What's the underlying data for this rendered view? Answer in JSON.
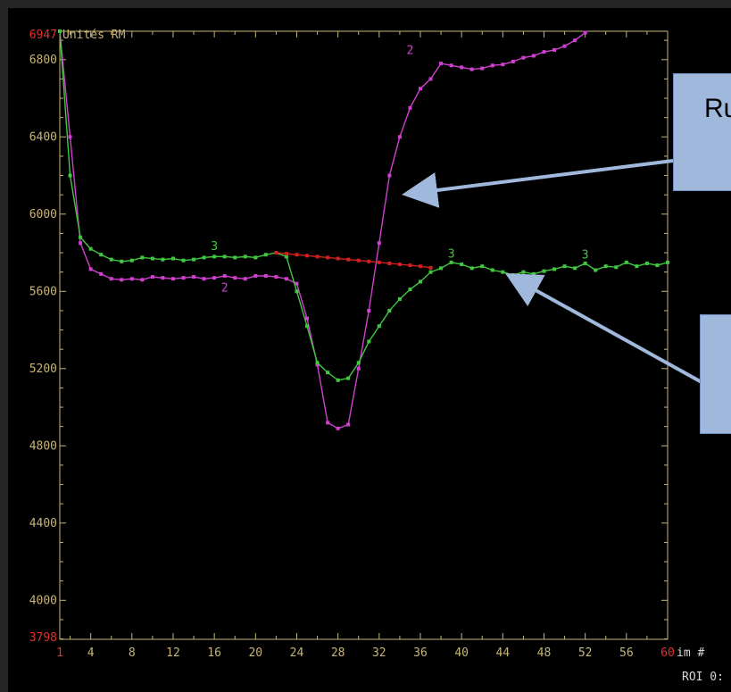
{
  "chart_data": {
    "type": "line",
    "ylabel": "Unités RM",
    "xlabel": "im #",
    "footer_text": "ROI 0:",
    "ylim": [
      3798,
      6947
    ],
    "xlim": [
      1,
      60
    ],
    "y_min_label": "3798",
    "y_max_label": "6947",
    "x_min_label": "1",
    "x_max_label": "60",
    "y_ticks": [
      4000,
      4400,
      4800,
      5200,
      5600,
      6000,
      6400,
      6800
    ],
    "x_ticks": [
      4,
      8,
      12,
      16,
      20,
      24,
      28,
      32,
      36,
      40,
      44,
      48,
      52,
      56
    ],
    "grid": false,
    "series": [
      {
        "name": "2",
        "color": "#d040d0",
        "label_at": [
          [
            17,
            5600
          ],
          [
            35,
            6830
          ]
        ],
        "points": [
          [
            1,
            6947
          ],
          [
            2,
            6400
          ],
          [
            3,
            5850
          ],
          [
            4,
            5715
          ],
          [
            5,
            5690
          ],
          [
            6,
            5665
          ],
          [
            7,
            5660
          ],
          [
            8,
            5665
          ],
          [
            9,
            5660
          ],
          [
            10,
            5675
          ],
          [
            11,
            5670
          ],
          [
            12,
            5665
          ],
          [
            13,
            5670
          ],
          [
            14,
            5675
          ],
          [
            15,
            5665
          ],
          [
            16,
            5670
          ],
          [
            17,
            5680
          ],
          [
            18,
            5670
          ],
          [
            19,
            5665
          ],
          [
            20,
            5680
          ],
          [
            21,
            5680
          ],
          [
            22,
            5675
          ],
          [
            23,
            5665
          ],
          [
            24,
            5640
          ],
          [
            25,
            5460
          ],
          [
            26,
            5220
          ],
          [
            27,
            4920
          ],
          [
            28,
            4890
          ],
          [
            29,
            4910
          ],
          [
            30,
            5200
          ],
          [
            31,
            5500
          ],
          [
            32,
            5850
          ],
          [
            33,
            6200
          ],
          [
            34,
            6400
          ],
          [
            35,
            6550
          ],
          [
            36,
            6650
          ],
          [
            37,
            6700
          ],
          [
            38,
            6780
          ],
          [
            39,
            6770
          ],
          [
            40,
            6760
          ],
          [
            41,
            6750
          ],
          [
            42,
            6755
          ],
          [
            43,
            6770
          ],
          [
            44,
            6775
          ],
          [
            45,
            6790
          ],
          [
            46,
            6810
          ],
          [
            47,
            6820
          ],
          [
            48,
            6840
          ],
          [
            49,
            6850
          ],
          [
            50,
            6870
          ],
          [
            51,
            6900
          ],
          [
            52,
            6940
          ]
        ]
      },
      {
        "name": "3",
        "color": "#40c840",
        "label_at": [
          [
            16,
            5815
          ],
          [
            39,
            5775
          ],
          [
            52,
            5770
          ]
        ],
        "points": [
          [
            1,
            6947
          ],
          [
            2,
            6200
          ],
          [
            3,
            5880
          ],
          [
            4,
            5820
          ],
          [
            5,
            5790
          ],
          [
            6,
            5765
          ],
          [
            7,
            5755
          ],
          [
            8,
            5760
          ],
          [
            9,
            5775
          ],
          [
            10,
            5770
          ],
          [
            11,
            5765
          ],
          [
            12,
            5770
          ],
          [
            13,
            5760
          ],
          [
            14,
            5765
          ],
          [
            15,
            5775
          ],
          [
            16,
            5780
          ],
          [
            17,
            5780
          ],
          [
            18,
            5775
          ],
          [
            19,
            5780
          ],
          [
            20,
            5775
          ],
          [
            21,
            5790
          ],
          [
            22,
            5800
          ],
          [
            23,
            5780
          ],
          [
            24,
            5600
          ],
          [
            25,
            5420
          ],
          [
            26,
            5230
          ],
          [
            27,
            5180
          ],
          [
            28,
            5140
          ],
          [
            29,
            5150
          ],
          [
            30,
            5230
          ],
          [
            31,
            5340
          ],
          [
            32,
            5420
          ],
          [
            33,
            5500
          ],
          [
            34,
            5560
          ],
          [
            35,
            5610
          ],
          [
            36,
            5650
          ],
          [
            37,
            5700
          ],
          [
            38,
            5720
          ],
          [
            39,
            5750
          ],
          [
            40,
            5740
          ],
          [
            41,
            5720
          ],
          [
            42,
            5730
          ],
          [
            43,
            5710
          ],
          [
            44,
            5700
          ],
          [
            45,
            5685
          ],
          [
            46,
            5700
          ],
          [
            47,
            5690
          ],
          [
            48,
            5705
          ],
          [
            49,
            5715
          ],
          [
            50,
            5730
          ],
          [
            51,
            5720
          ],
          [
            52,
            5745
          ],
          [
            53,
            5710
          ],
          [
            54,
            5730
          ],
          [
            55,
            5725
          ],
          [
            56,
            5750
          ],
          [
            57,
            5730
          ],
          [
            58,
            5745
          ],
          [
            59,
            5735
          ],
          [
            60,
            5750
          ]
        ]
      },
      {
        "name": "",
        "color": "#d02020",
        "points": [
          [
            22,
            5800
          ],
          [
            23,
            5795
          ],
          [
            24,
            5790
          ],
          [
            25,
            5785
          ],
          [
            26,
            5780
          ],
          [
            27,
            5775
          ],
          [
            28,
            5770
          ],
          [
            29,
            5765
          ],
          [
            30,
            5760
          ],
          [
            31,
            5755
          ],
          [
            32,
            5750
          ],
          [
            33,
            5745
          ],
          [
            34,
            5740
          ],
          [
            35,
            5735
          ],
          [
            36,
            5730
          ],
          [
            37,
            5722
          ]
        ]
      }
    ]
  },
  "callouts": [
    {
      "name": "callout-top",
      "text": "Ru"
    },
    {
      "name": "callout-bottom",
      "text": ""
    }
  ],
  "colors": {
    "axis": "#c8b478",
    "min_max_label": "#e03030",
    "arrow": "#9fb8dc"
  }
}
